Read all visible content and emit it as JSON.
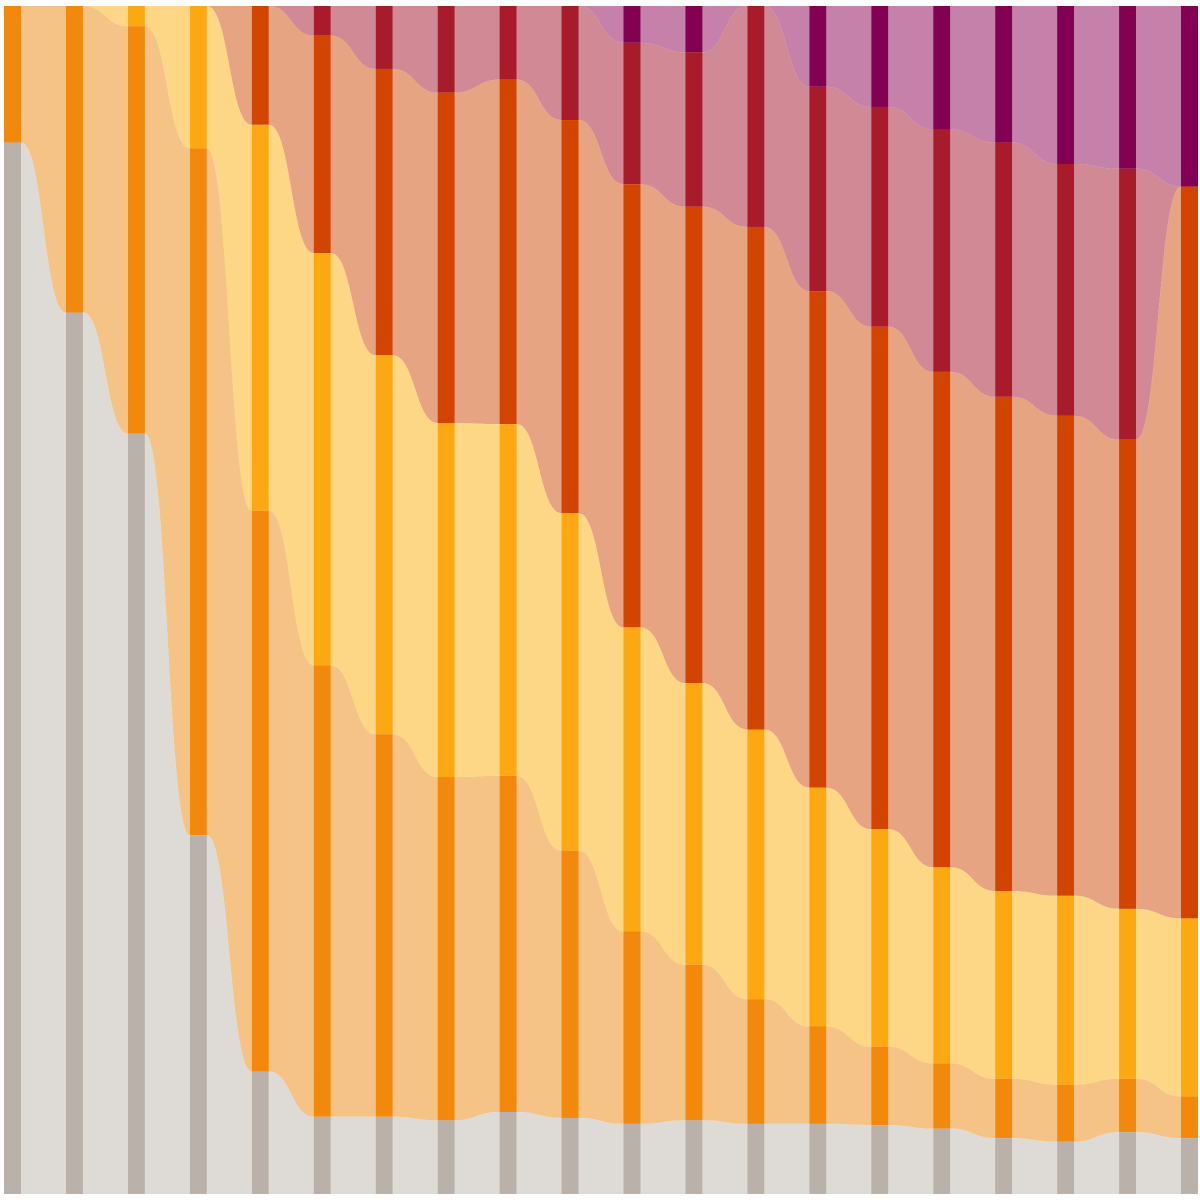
{
  "chart_data": {
    "type": "sankey",
    "title": "",
    "subtitle": "",
    "xlabel": "",
    "ylabel": "",
    "grid": false,
    "legend": "none",
    "stack_order_top_to_bottom": [
      "c5",
      "c4",
      "c3",
      "c2",
      "c1",
      "c0"
    ],
    "category_colors": {
      "c0": {
        "node": "#bab2aa",
        "link": "#dcd9d4"
      },
      "c1": {
        "node": "#f2880c",
        "link": "#f6c081"
      },
      "c2": {
        "node": "#fca812",
        "link": "#fdd57f"
      },
      "c3": {
        "node": "#d14501",
        "link": "#e59f7b"
      },
      "c4": {
        "node": "#a81b2b",
        "link": "#cf838f"
      },
      "c5": {
        "node": "#820152",
        "link": "#c27aa5"
      }
    },
    "columns": [
      {
        "index": 0,
        "c5": 0.0,
        "c4": 0.0,
        "c3": 0.0,
        "c2": 0.0,
        "c1": 0.115,
        "c0": 0.885
      },
      {
        "index": 1,
        "c5": 0.0,
        "c4": 0.0,
        "c3": 0.0,
        "c2": 0.0,
        "c1": 0.258,
        "c0": 0.742
      },
      {
        "index": 2,
        "c5": 0.0,
        "c4": 0.0,
        "c3": 0.0,
        "c2": 0.017,
        "c1": 0.343,
        "c0": 0.64
      },
      {
        "index": 3,
        "c5": 0.0,
        "c4": 0.0,
        "c3": 0.0,
        "c2": 0.12,
        "c1": 0.578,
        "c0": 0.302
      },
      {
        "index": 4,
        "c5": 0.0,
        "c4": 0.0,
        "c3": 0.1,
        "c2": 0.325,
        "c1": 0.472,
        "c0": 0.103
      },
      {
        "index": 5,
        "c5": 0.0,
        "c4": 0.025,
        "c3": 0.183,
        "c2": 0.347,
        "c1": 0.38,
        "c0": 0.065
      },
      {
        "index": 6,
        "c5": 0.0,
        "c4": 0.053,
        "c3": 0.241,
        "c2": 0.319,
        "c1": 0.322,
        "c0": 0.065
      },
      {
        "index": 7,
        "c5": 0.0,
        "c4": 0.073,
        "c3": 0.278,
        "c2": 0.298,
        "c1": 0.289,
        "c0": 0.062
      },
      {
        "index": 8,
        "c5": 0.0,
        "c4": 0.062,
        "c3": 0.29,
        "c2": 0.296,
        "c1": 0.283,
        "c0": 0.069
      },
      {
        "index": 9,
        "c5": 0.0,
        "c4": 0.096,
        "c3": 0.331,
        "c2": 0.284,
        "c1": 0.225,
        "c0": 0.064
      },
      {
        "index": 10,
        "c5": 0.031,
        "c4": 0.119,
        "c3": 0.373,
        "c2": 0.256,
        "c1": 0.162,
        "c0": 0.059
      },
      {
        "index": 11,
        "c5": 0.039,
        "c4": 0.13,
        "c3": 0.401,
        "c2": 0.237,
        "c1": 0.131,
        "c0": 0.062
      },
      {
        "index": 12,
        "c5": 0.0,
        "c4": 0.186,
        "c3": 0.423,
        "c2": 0.227,
        "c1": 0.105,
        "c0": 0.059
      },
      {
        "index": 13,
        "c5": 0.068,
        "c4": 0.172,
        "c3": 0.418,
        "c2": 0.201,
        "c1": 0.082,
        "c0": 0.059
      },
      {
        "index": 14,
        "c5": 0.085,
        "c4": 0.185,
        "c3": 0.423,
        "c2": 0.183,
        "c1": 0.066,
        "c0": 0.058
      },
      {
        "index": 15,
        "c5": 0.104,
        "c4": 0.204,
        "c3": 0.417,
        "c2": 0.165,
        "c1": 0.055,
        "c0": 0.055
      },
      {
        "index": 16,
        "c5": 0.115,
        "c4": 0.214,
        "c3": 0.416,
        "c2": 0.158,
        "c1": 0.05,
        "c0": 0.047
      },
      {
        "index": 17,
        "c5": 0.133,
        "c4": 0.212,
        "c3": 0.404,
        "c2": 0.159,
        "c1": 0.048,
        "c0": 0.044
      },
      {
        "index": 18,
        "c5": 0.137,
        "c4": 0.228,
        "c3": 0.395,
        "c2": 0.143,
        "c1": 0.045,
        "c0": 0.052
      },
      {
        "index": 19,
        "c5": 0.152,
        "c4": 0.0,
        "c3": 0.616,
        "c2": 0.15,
        "c1": 0.035,
        "c0": 0.047
      }
    ]
  }
}
